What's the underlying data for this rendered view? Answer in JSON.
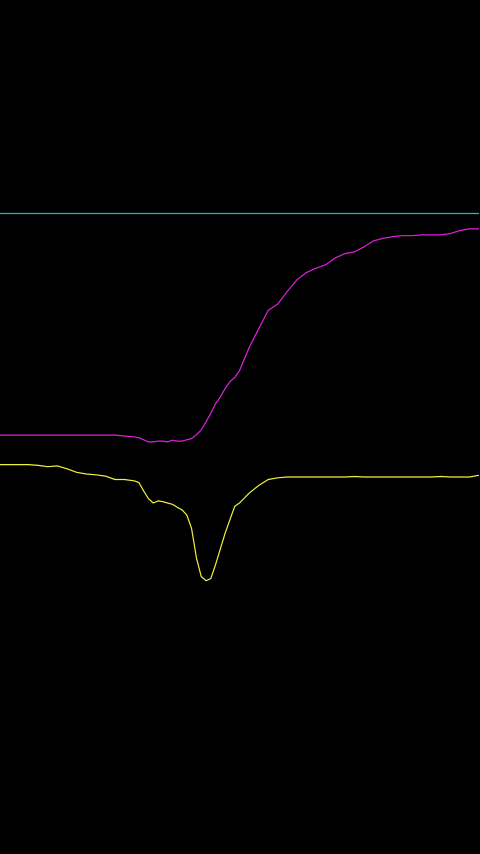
{
  "chart_data": {
    "type": "line",
    "title": "",
    "xlabel": "",
    "ylabel": "",
    "grid": false,
    "legend": "none",
    "xlim": [
      0,
      100
    ],
    "ylim": [
      -100,
      100
    ],
    "x": [
      0,
      2,
      4,
      6,
      8,
      10,
      12,
      14,
      16,
      18,
      20,
      22,
      24,
      26,
      28,
      29,
      30,
      31,
      32,
      33,
      34,
      35,
      36,
      37,
      38,
      39,
      40,
      41,
      42,
      43,
      44,
      45,
      46,
      47,
      48,
      49,
      50,
      52,
      54,
      56,
      58,
      60,
      62,
      64,
      66,
      68,
      70,
      72,
      74,
      76,
      78,
      80,
      82,
      84,
      86,
      88,
      90,
      92,
      94,
      96,
      98,
      100
    ],
    "series": [
      {
        "color": "#00c8c8",
        "values": [
          50,
          50,
          50,
          50,
          50,
          50,
          50,
          50,
          50,
          50,
          50,
          50,
          50,
          50,
          50,
          50,
          50,
          50,
          50,
          50,
          50,
          50,
          50,
          50,
          50,
          50,
          50,
          50,
          50,
          50,
          50,
          50,
          50,
          50,
          50,
          50,
          50,
          50,
          50,
          50,
          50,
          50,
          50,
          50,
          50,
          50,
          50,
          50,
          50,
          50,
          50,
          50,
          50,
          50,
          50,
          50,
          50,
          50,
          50,
          50,
          50,
          50
        ]
      },
      {
        "color": "#e020e0",
        "values": [
          -1.9,
          -1.9,
          -1.9,
          -1.9,
          -1.9,
          -1.9,
          -1.9,
          -1.9,
          -1.9,
          -1.9,
          -1.9,
          -1.9,
          -1.9,
          -2.1,
          -2.3,
          -2.5,
          -3.0,
          -3.5,
          -3.5,
          -3.3,
          -3.3,
          -3.5,
          -3.1,
          -3.3,
          -3.3,
          -3.0,
          -2.7,
          -1.8,
          -0.7,
          1.2,
          3.2,
          5.5,
          7.0,
          9.0,
          10.6,
          11.6,
          13.2,
          18.6,
          23.0,
          27.3,
          28.8,
          31.8,
          34.5,
          36.2,
          37.2,
          38.0,
          39.6,
          40.6,
          41.0,
          42.2,
          43.6,
          44.2,
          44.6,
          44.8,
          44.8,
          45.0,
          45.0,
          45.0,
          45.3,
          46.0,
          46.4,
          46.4
        ]
      },
      {
        "color": "#f0f040",
        "values": [
          -8.8,
          -8.8,
          -8.8,
          -8.8,
          -9.0,
          -9.3,
          -9.1,
          -9.8,
          -10.6,
          -11.0,
          -11.2,
          -11.5,
          -12.3,
          -12.3,
          -12.6,
          -13.0,
          -15.0,
          -16.8,
          -17.8,
          -17.3,
          -17.5,
          -17.8,
          -18.1,
          -18.8,
          -19.4,
          -20.6,
          -23.8,
          -30.6,
          -35.0,
          -36.0,
          -35.5,
          -32.2,
          -28.6,
          -24.9,
          -21.7,
          -18.6,
          -17.8,
          -15.5,
          -13.7,
          -12.3,
          -11.9,
          -11.7,
          -11.7,
          -11.7,
          -11.7,
          -11.7,
          -11.7,
          -11.7,
          -11.6,
          -11.7,
          -11.7,
          -11.7,
          -11.7,
          -11.7,
          -11.7,
          -11.7,
          -11.7,
          -11.6,
          -11.7,
          -11.7,
          -11.7,
          -11.3
        ]
      }
    ]
  }
}
